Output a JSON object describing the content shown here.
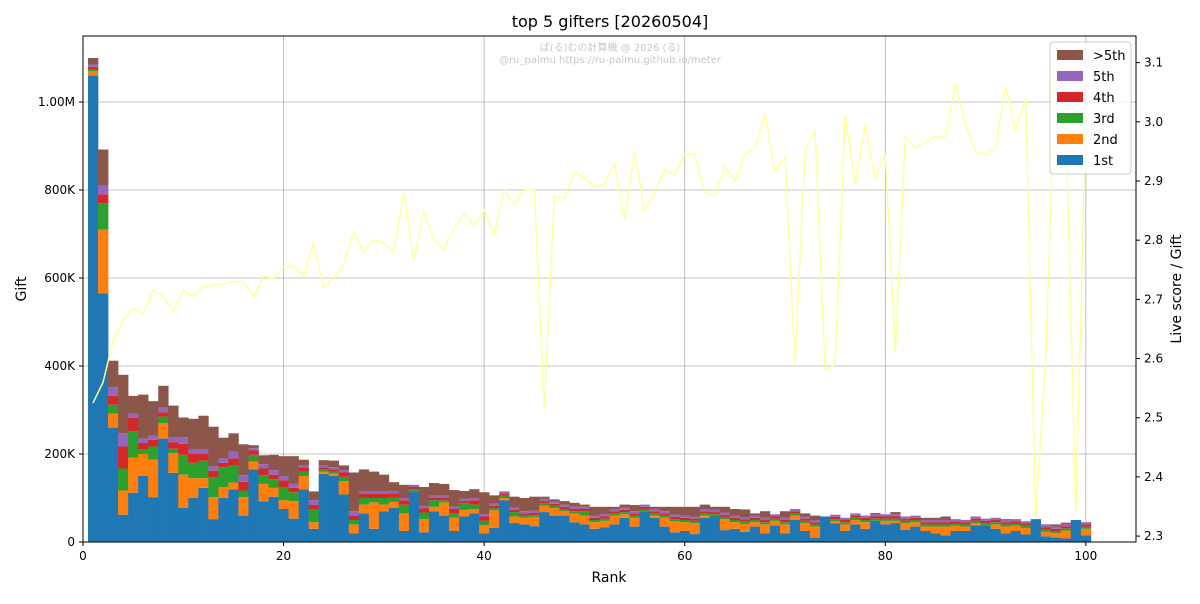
{
  "chart_data": {
    "type": "bar",
    "stacked": true,
    "title": "top 5 gifters [20260504]",
    "xlabel": "Rank",
    "ylabel": "Gift",
    "y2label": "Live score / Gift",
    "watermark": [
      "ぱ(る)むの計算機 @ 2026 (る)",
      "@ru_palmu  https://ru-palmu.github.io/meter"
    ],
    "xlim": [
      0,
      105
    ],
    "ylim": [
      0,
      1150000
    ],
    "y2lim": [
      2.29,
      3.145
    ],
    "grid": true,
    "legend_position": "top-right",
    "x_ticks": [
      0,
      20,
      40,
      60,
      80,
      100
    ],
    "x_tick_labels": [
      "0",
      "20",
      "40",
      "60",
      "80",
      "100"
    ],
    "y_ticks": [
      0,
      200000,
      400000,
      600000,
      800000,
      1000000
    ],
    "y_tick_labels": [
      "0",
      "200K",
      "400K",
      "600K",
      "800K",
      "1.00M"
    ],
    "y2_ticks": [
      2.3,
      2.4,
      2.5,
      2.6,
      2.7,
      2.8,
      2.9,
      3.0,
      3.1
    ],
    "y2_tick_labels": [
      "2.3",
      "2.4",
      "2.5",
      "2.6",
      "2.7",
      "2.8",
      "2.9",
      "3.0",
      "3.1"
    ],
    "series": [
      {
        "name": "1st",
        "color": "#1f77b4",
        "values": [
          1060000,
          565000,
          260000,
          62000,
          112000,
          150000,
          102000,
          235000,
          157000,
          78000,
          100000,
          123000,
          52000,
          100000,
          120000,
          60000,
          165000,
          92000,
          103000,
          75000,
          53000,
          120000,
          30000,
          155000,
          150000,
          108000,
          20000,
          65000,
          30000,
          70000,
          78000,
          25000,
          115000,
          22000,
          70000,
          60000,
          25000,
          58000,
          65000,
          20000,
          32000,
          95000,
          43000,
          40000,
          36000,
          68000,
          60000,
          60000,
          45000,
          40000,
          30000,
          33000,
          40000,
          55000,
          35000,
          70000,
          55000,
          35000,
          22000,
          25000,
          18000,
          55000,
          58000,
          27000,
          30000,
          23000,
          35000,
          20000,
          38000,
          20000,
          50000,
          25000,
          10000,
          58000,
          42000,
          25000,
          40000,
          30000,
          48000,
          40000,
          43000,
          28000,
          35000,
          25000,
          20000,
          15000,
          25000,
          25000,
          38000,
          38000,
          30000,
          20000,
          25000,
          17000,
          52000,
          13000,
          10000,
          8000,
          50000,
          15000
        ]
      },
      {
        "name": "2nd",
        "color": "#ff7f0e",
        "values": [
          10000,
          145000,
          32000,
          55000,
          80000,
          50000,
          85000,
          35000,
          45000,
          75000,
          45000,
          22000,
          50000,
          25000,
          15000,
          42000,
          18000,
          40000,
          20000,
          20000,
          40000,
          30000,
          15000,
          5000,
          5000,
          30000,
          20000,
          20000,
          60000,
          15000,
          13000,
          40000,
          0,
          30000,
          10000,
          30000,
          30000,
          15000,
          10000,
          18000,
          40000,
          5000,
          15000,
          15000,
          20000,
          15000,
          17000,
          10000,
          20000,
          20000,
          15000,
          15000,
          20000,
          8000,
          20000,
          0,
          5000,
          20000,
          25000,
          20000,
          25000,
          5000,
          0,
          25000,
          15000,
          18000,
          10000,
          20000,
          10000,
          20000,
          10000,
          18000,
          25000,
          0,
          5000,
          15000,
          10000,
          15000,
          0,
          8000,
          5000,
          15000,
          10000,
          10000,
          15000,
          20000,
          12000,
          10000,
          5000,
          0,
          10000,
          15000,
          12000,
          15000,
          0,
          10000,
          10000,
          18000,
          0,
          15000
        ]
      },
      {
        "name": "3rd",
        "color": "#2ca02c",
        "values": [
          5000,
          60000,
          20000,
          50000,
          60000,
          10000,
          30000,
          15000,
          10000,
          45000,
          35000,
          40000,
          45000,
          45000,
          40000,
          15000,
          15000,
          20000,
          20000,
          30000,
          20000,
          10000,
          30000,
          5000,
          5000,
          10000,
          10000,
          15000,
          10000,
          15000,
          10000,
          20000,
          5000,
          15000,
          15000,
          5000,
          10000,
          15000,
          10000,
          10000,
          5000,
          5000,
          10000,
          5000,
          5000,
          5000,
          5000,
          5000,
          5000,
          10000,
          5000,
          5000,
          5000,
          5000,
          5000,
          5000,
          5000,
          5000,
          5000,
          5000,
          5000,
          5000,
          5000,
          5000,
          5000,
          5000,
          5000,
          5000,
          5000,
          5000,
          5000,
          5000,
          5000,
          0,
          5000,
          5000,
          5000,
          5000,
          5000,
          5000,
          5000,
          5000,
          5000,
          5000,
          5000,
          5000,
          5000,
          5000,
          5000,
          5000,
          5000,
          5000,
          5000,
          5000,
          0,
          5000,
          5000,
          5000,
          0,
          5000
        ]
      },
      {
        "name": "4th",
        "color": "#d62728",
        "values": [
          5000,
          20000,
          20000,
          50000,
          30000,
          15000,
          15000,
          10000,
          15000,
          25000,
          20000,
          15000,
          15000,
          10000,
          15000,
          20000,
          10000,
          15000,
          10000,
          15000,
          10000,
          10000,
          10000,
          5000,
          5000,
          10000,
          10000,
          10000,
          10000,
          10000,
          10000,
          10000,
          5000,
          10000,
          5000,
          5000,
          10000,
          5000,
          10000,
          10000,
          5000,
          5000,
          5000,
          5000,
          5000,
          5000,
          5000,
          5000,
          5000,
          5000,
          5000,
          5000,
          5000,
          5000,
          5000,
          5000,
          5000,
          5000,
          5000,
          5000,
          5000,
          5000,
          5000,
          5000,
          5000,
          5000,
          5000,
          5000,
          5000,
          5000,
          5000,
          5000,
          5000,
          0,
          5000,
          5000,
          5000,
          5000,
          5000,
          5000,
          5000,
          5000,
          5000,
          5000,
          5000,
          5000,
          5000,
          5000,
          5000,
          5000,
          5000,
          5000,
          5000,
          5000,
          0,
          5000,
          5000,
          5000,
          0,
          5000
        ]
      },
      {
        "name": "5th",
        "color": "#9467bd",
        "values": [
          5000,
          20000,
          20000,
          30000,
          10000,
          10000,
          10000,
          10000,
          10000,
          15000,
          10000,
          10000,
          10000,
          10000,
          15000,
          15000,
          5000,
          10000,
          10000,
          10000,
          10000,
          5000,
          10000,
          5000,
          5000,
          5000,
          10000,
          5000,
          5000,
          5000,
          5000,
          5000,
          5000,
          5000,
          5000,
          5000,
          5000,
          5000,
          5000,
          5000,
          5000,
          5000,
          5000,
          5000,
          5000,
          5000,
          5000,
          5000,
          5000,
          5000,
          5000,
          5000,
          5000,
          5000,
          5000,
          5000,
          5000,
          5000,
          5000,
          5000,
          5000,
          5000,
          5000,
          5000,
          5000,
          5000,
          5000,
          5000,
          5000,
          5000,
          5000,
          5000,
          5000,
          0,
          5000,
          5000,
          5000,
          5000,
          5000,
          5000,
          5000,
          5000,
          5000,
          5000,
          5000,
          5000,
          5000,
          5000,
          5000,
          5000,
          5000,
          5000,
          5000,
          5000,
          0,
          5000,
          5000,
          5000,
          0,
          5000
        ]
      },
      {
        "name": ">5th",
        "color": "#8c564b",
        "values": [
          15000,
          82000,
          60000,
          133000,
          40000,
          100000,
          78000,
          50000,
          73000,
          45000,
          70000,
          77000,
          90000,
          47000,
          42000,
          70000,
          7000,
          20000,
          35000,
          45000,
          62000,
          12000,
          20000,
          11000,
          15000,
          11000,
          88000,
          50000,
          45000,
          38000,
          20000,
          30000,
          0,
          43000,
          29000,
          27000,
          38000,
          18000,
          20000,
          50000,
          19000,
          0,
          25000,
          30000,
          32000,
          5000,
          5000,
          8000,
          9000,
          5000,
          20000,
          17000,
          5000,
          7000,
          14000,
          0,
          5000,
          10000,
          18000,
          20000,
          22000,
          10000,
          7000,
          13000,
          15000,
          18000,
          5000,
          15000,
          0,
          15000,
          0,
          7000,
          10000,
          0,
          0,
          0,
          0,
          0,
          3000,
          0,
          5000,
          0,
          0,
          5000,
          5000,
          8000,
          0,
          0,
          0,
          0,
          0,
          2000,
          0,
          0,
          0,
          2000,
          5000,
          3000,
          0,
          0
        ]
      }
    ],
    "line": {
      "name": "Live score / Gift",
      "color": "#ffff99",
      "values": [
        2.525,
        2.56,
        2.63,
        2.665,
        2.685,
        2.675,
        2.715,
        2.705,
        2.68,
        2.715,
        2.705,
        2.72,
        2.725,
        2.725,
        2.73,
        2.73,
        2.705,
        2.74,
        2.735,
        2.755,
        2.755,
        2.74,
        2.795,
        2.72,
        2.735,
        2.76,
        2.815,
        2.78,
        2.8,
        2.795,
        2.78,
        2.88,
        2.765,
        2.85,
        2.8,
        2.785,
        2.82,
        2.845,
        2.825,
        2.85,
        2.81,
        2.885,
        2.86,
        2.885,
        2.885,
        2.515,
        2.875,
        2.87,
        2.915,
        2.905,
        2.89,
        2.895,
        2.93,
        2.835,
        2.95,
        2.85,
        2.88,
        2.92,
        2.91,
        2.945,
        2.945,
        2.88,
        2.875,
        2.925,
        2.9,
        2.945,
        2.955,
        3.015,
        2.915,
        2.94,
        2.59,
        2.95,
        2.985,
        2.58,
        2.59,
        3.01,
        2.895,
        2.995,
        2.905,
        2.945,
        2.61,
        2.975,
        2.955,
        2.965,
        2.975,
        2.975,
        3.065,
        2.995,
        2.95,
        2.945,
        2.955,
        3.06,
        2.985,
        3.04,
        2.33,
        2.6,
        3.125,
        3.01,
        2.34,
        3.02
      ]
    }
  }
}
